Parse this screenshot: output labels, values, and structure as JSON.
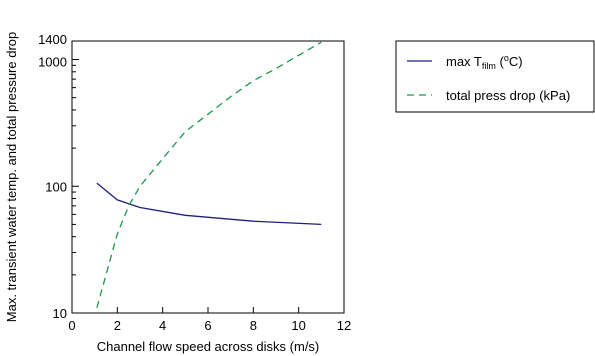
{
  "chart_data": {
    "type": "line",
    "xlabel": "Channel flow speed across disks (m/s)",
    "ylabel": "Max. transient water temp. and total pressure drop",
    "xlim": [
      0,
      12
    ],
    "ylim": [
      10,
      1400
    ],
    "yscale": "log",
    "xticks": [
      0,
      2,
      4,
      6,
      8,
      10,
      12
    ],
    "yticks": [
      10,
      100,
      1000,
      1400
    ],
    "grid": false,
    "legend_position": "right-outside-top",
    "series": [
      {
        "key": "tfilm",
        "name": "max T_film (oC)",
        "legend_base": "max T",
        "legend_sub": "film",
        "legend_open": " (",
        "legend_sup": "o",
        "legend_close": "C)",
        "color": "#1f1f7a",
        "dash": "solid",
        "x": [
          1.1,
          2,
          3,
          5,
          8,
          11
        ],
        "y": [
          106,
          78,
          68,
          59,
          53,
          50
        ]
      },
      {
        "key": "pdrop",
        "name": "total press drop (kPa)",
        "color": "#1a9a4a",
        "dash": "dashed",
        "x": [
          1.1,
          1.5,
          2,
          2.5,
          3,
          4,
          5,
          6,
          7,
          8,
          9,
          10,
          11
        ],
        "y": [
          11,
          20,
          42,
          70,
          100,
          165,
          270,
          370,
          510,
          680,
          850,
          1080,
          1370
        ]
      }
    ]
  }
}
